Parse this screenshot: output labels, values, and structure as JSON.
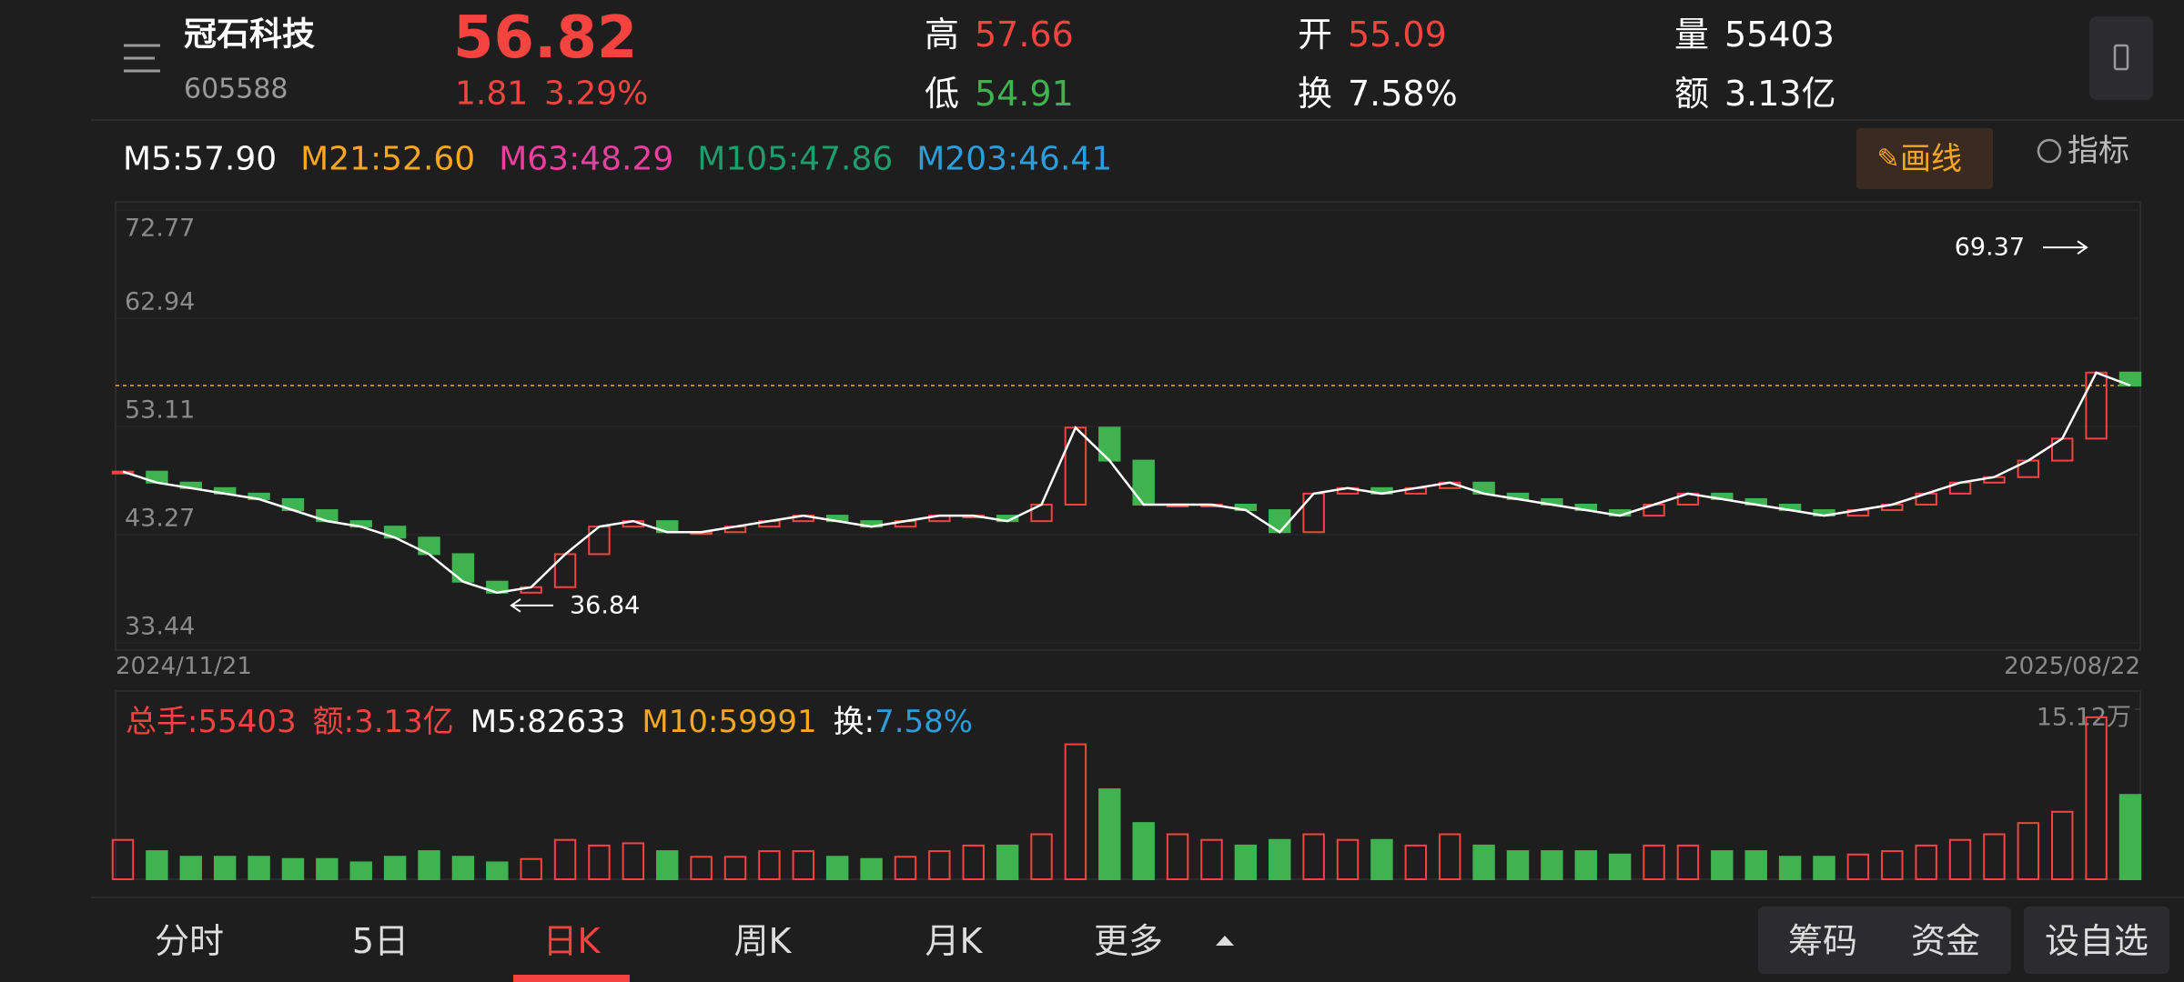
{
  "header": {
    "name": "冠石科技",
    "code": "605588",
    "price": "56.82",
    "change": "1.81",
    "change_pct": "3.29%",
    "stats": [
      {
        "label": "高",
        "value": "57.66",
        "color": "#f5433f"
      },
      {
        "label": "低",
        "value": "54.91",
        "color": "#3fb34f"
      },
      {
        "label": "开",
        "value": "55.09",
        "color": "#f5433f"
      },
      {
        "label": "换",
        "value": "7.58%",
        "color": "#ffffff"
      },
      {
        "label": "量",
        "value": "55403",
        "color": "#ffffff"
      },
      {
        "label": "额",
        "value": "3.13亿",
        "color": "#ffffff"
      }
    ]
  },
  "ma_legend": [
    {
      "text": "M5:57.90",
      "color": "#ffffff"
    },
    {
      "text": "M21:52.60",
      "color": "#f5a623"
    },
    {
      "text": "M63:48.29",
      "color": "#e83fa0"
    },
    {
      "text": "M105:47.86",
      "color": "#1e9e6e"
    },
    {
      "text": "M203:46.41",
      "color": "#2d9cdb"
    }
  ],
  "tools": {
    "draw": "画线",
    "indicator": "指标"
  },
  "chart_data": {
    "type": "candlestick",
    "close": [
      49,
      48,
      47.5,
      47,
      46.5,
      45.5,
      44.5,
      44,
      43,
      41.5,
      39,
      38,
      38.5,
      41.5,
      44,
      44.5,
      43.5,
      43.5,
      44,
      44.5,
      45,
      44.5,
      44,
      44.5,
      45,
      45,
      44.5,
      46,
      53,
      50,
      46,
      46,
      46,
      45.5,
      43.5,
      47,
      47.5,
      47,
      47.5,
      48,
      47,
      46.5,
      46,
      45.5,
      45,
      46,
      47,
      46.5,
      46,
      45.5,
      45,
      45.5,
      46,
      47,
      48,
      48.5,
      50,
      52,
      58,
      56.82
    ],
    "ylim": [
      33.44,
      72.77
    ],
    "yticks": [
      72.77,
      62.94,
      53.11,
      43.27,
      33.44
    ],
    "last_price": 56.82,
    "annotations": [
      69.37,
      36.84
    ],
    "x_start_label": "2024/11/21",
    "x_end_label": "2025/08/22",
    "up_color": "#f5433f",
    "down_color": "#3fb34f"
  },
  "volume_chart": {
    "type": "bar",
    "legend": [
      {
        "text": "总手:55403",
        "color": "#f5433f"
      },
      {
        "text": "额:3.13亿",
        "color": "#f5433f"
      },
      {
        "text": "M5:82633",
        "color": "#ffffff"
      },
      {
        "text": "M10:59991",
        "color": "#f5a623"
      },
      {
        "text": "换:",
        "color": "#ffffff"
      },
      {
        "text": "7.58%",
        "color": "#2d9cdb"
      }
    ],
    "values": [
      3.5,
      2.5,
      2,
      2,
      2,
      1.8,
      1.8,
      1.5,
      2,
      2.5,
      2,
      1.5,
      1.8,
      3.5,
      3,
      3.2,
      2.5,
      2,
      2,
      2.5,
      2.5,
      2,
      1.8,
      2,
      2.5,
      3,
      3,
      4,
      12,
      8,
      5,
      4,
      3.5,
      3,
      3.5,
      4,
      3.5,
      3.5,
      3,
      4,
      3,
      2.5,
      2.5,
      2.5,
      2.2,
      3,
      3,
      2.5,
      2.5,
      2,
      2,
      2.2,
      2.5,
      3,
      3.5,
      4,
      5,
      6,
      14.4,
      7.5
    ],
    "ylim": [
      0,
      15.12
    ],
    "yticks": [
      {
        "value": 15.12,
        "label": "15.12万"
      }
    ]
  },
  "tabs": [
    "分时",
    "5日",
    "日K",
    "周K",
    "月K",
    "更多"
  ],
  "active_tab": 2,
  "buttons": [
    "筹码",
    "资金",
    "设自选"
  ]
}
